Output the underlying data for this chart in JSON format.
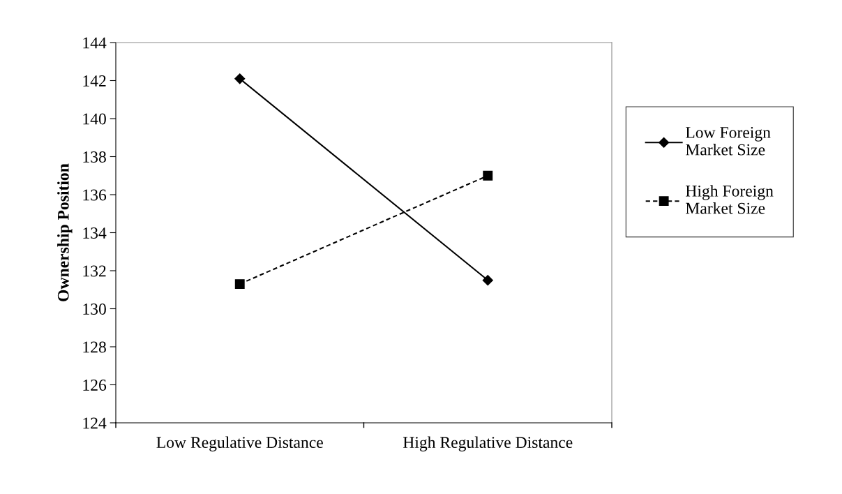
{
  "chart_data": {
    "type": "line",
    "ylabel": "Ownership Position",
    "categories": [
      "Low Regulative Distance",
      "High Regulative Distance"
    ],
    "series": [
      {
        "name": "Low Foreign\nMarket Size",
        "color": "#000000",
        "values": [
          142.1,
          131.5
        ],
        "marker": "diamond",
        "line_style": "solid"
      },
      {
        "name": "High Foreign\nMarket Size",
        "color": "#000000",
        "values": [
          131.3,
          137.0
        ],
        "marker": "square",
        "line_style": "dashed"
      }
    ],
    "ylim": [
      124,
      144
    ],
    "yticks": [
      124,
      126,
      128,
      130,
      132,
      134,
      136,
      138,
      140,
      142,
      144
    ],
    "grid": false,
    "legend": "right"
  }
}
